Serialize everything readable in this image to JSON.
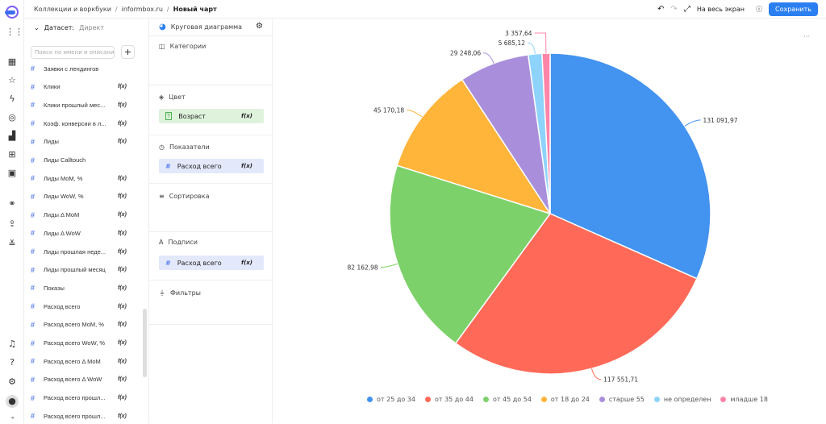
{
  "header": {
    "breadcrumbs": [
      "Коллекции и воркбуки",
      "informbox.ru",
      "Новый чарт"
    ],
    "fullscreen": "На весь экран",
    "save": "Сохранить",
    "more": "···"
  },
  "dataset": {
    "label": "Датасет:",
    "name": "Директ",
    "search_placeholder": "Поиск по имени и описанию",
    "add": "+"
  },
  "fields": [
    {
      "name": "Заявки с лендингов",
      "fx": false
    },
    {
      "name": "Клики",
      "fx": true
    },
    {
      "name": "Клики прошлый мес...",
      "fx": true
    },
    {
      "name": "Коэф. конверсии в л...",
      "fx": true
    },
    {
      "name": "Лиды",
      "fx": true
    },
    {
      "name": "Лиды Calltouch",
      "fx": false
    },
    {
      "name": "Лиды MoM, %",
      "fx": true
    },
    {
      "name": "Лиды WoW, %",
      "fx": true
    },
    {
      "name": "Лиды Δ MoM",
      "fx": true
    },
    {
      "name": "Лиды Δ WoW",
      "fx": true
    },
    {
      "name": "Лиды прошлая неде...",
      "fx": true
    },
    {
      "name": "Лиды прошлый месяц",
      "fx": true
    },
    {
      "name": "Показы",
      "fx": true
    },
    {
      "name": "Расход всего",
      "fx": true
    },
    {
      "name": "Расход всего MoM, %",
      "fx": true
    },
    {
      "name": "Расход всего WoW, %",
      "fx": true
    },
    {
      "name": "Расход всего Δ MoM",
      "fx": true
    },
    {
      "name": "Расход всего Δ WoW",
      "fx": true
    },
    {
      "name": "Расход всего прошл...",
      "fx": true
    },
    {
      "name": "Расход всего прошл...",
      "fx": true
    }
  ],
  "fx_label": "f(x)",
  "visualization": {
    "type": "Круговая диаграмма"
  },
  "sections": {
    "categories": "Категории",
    "color": "Цвет",
    "color_field": "Возраст",
    "measures": "Показатели",
    "measure_field": "Расход всего",
    "sort": "Сортировка",
    "labels": "Подписи",
    "labels_field": "Расход всего",
    "filters": "Фильтры"
  },
  "chart_data": {
    "type": "pie",
    "title": "",
    "slices": [
      {
        "label": "от 25 до 34",
        "value": 131091.97,
        "text": "131 091,97",
        "color": "#4393f0"
      },
      {
        "label": "от 35 до 44",
        "value": 117551.71,
        "text": "117 551,71",
        "color": "#ff6a58"
      },
      {
        "label": "от 45 до 54",
        "value": 82162.98,
        "text": "82 162,98",
        "color": "#7dd16a"
      },
      {
        "label": "от 18 до 24",
        "value": 45170.18,
        "text": "45 170,18",
        "color": "#ffb43a"
      },
      {
        "label": "старше 55",
        "value": 29248.06,
        "text": "29 248,06",
        "color": "#a98fdb"
      },
      {
        "label": "не определен",
        "value": 5685.12,
        "text": "5 685,12",
        "color": "#8ed3fb"
      },
      {
        "label": "младше 18",
        "value": 3357.64,
        "text": "3 357,64",
        "color": "#ff85a8"
      }
    ],
    "legend_position": "bottom"
  }
}
